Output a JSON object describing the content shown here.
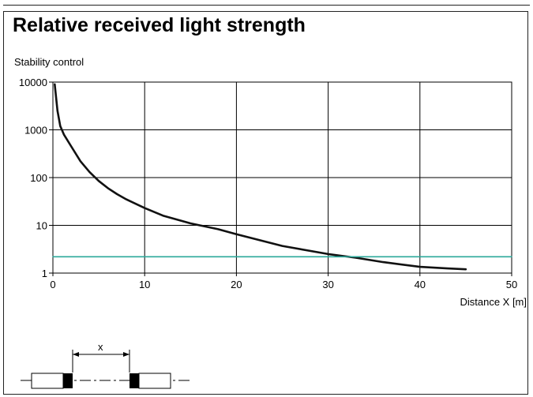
{
  "chart_data": {
    "type": "line",
    "title": "Relative received light strength",
    "ylabel": "Stability control",
    "xlabel": "Distance X [m]",
    "x_scale": "linear",
    "y_scale": "log",
    "xlim": [
      0,
      50
    ],
    "ylim": [
      1,
      10000
    ],
    "x_ticks": [
      0,
      10,
      20,
      30,
      40,
      50
    ],
    "y_ticks": [
      1,
      10,
      100,
      1000,
      10000
    ],
    "x_tick_labels": [
      "0",
      "10",
      "20",
      "30",
      "40",
      "50"
    ],
    "y_tick_labels": [
      "1",
      "10",
      "100",
      "1000",
      "10000"
    ],
    "grid": true,
    "series": [
      {
        "color": "#111111",
        "x": [
          0.2,
          0.5,
          0.8,
          1.2,
          2,
          3,
          4,
          5,
          6,
          7,
          8,
          10,
          12,
          15,
          18,
          20,
          25,
          30,
          33,
          36,
          40,
          43,
          45
        ],
        "y": [
          9000,
          2500,
          1200,
          800,
          450,
          220,
          130,
          85,
          60,
          45,
          35,
          23,
          16,
          11,
          8.3,
          6.5,
          3.7,
          2.5,
          2.1,
          1.7,
          1.35,
          1.25,
          1.2
        ]
      },
      {
        "color": "#2ba89a",
        "type": "threshold",
        "x": [
          0,
          50
        ],
        "y": [
          2.2,
          2.2
        ]
      }
    ]
  },
  "diagram": {
    "dimension_label": "x"
  }
}
